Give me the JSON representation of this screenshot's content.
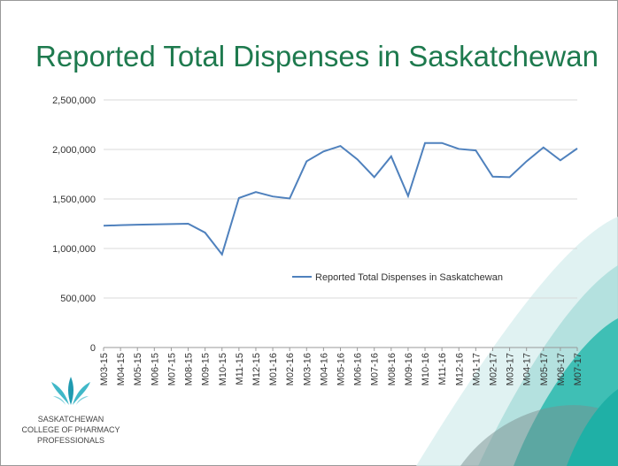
{
  "chart_data": {
    "type": "line",
    "title": "Reported Total Dispenses in Saskatchewan",
    "categories": [
      "M03-15",
      "M04-15",
      "M05-15",
      "M06-15",
      "M07-15",
      "M08-15",
      "M09-15",
      "M10-15",
      "M11-15",
      "M12-15",
      "M01-16",
      "M02-16",
      "M03-16",
      "M04-16",
      "M05-16",
      "M06-16",
      "M07-16",
      "M08-16",
      "M09-16",
      "M10-16",
      "M11-16",
      "M12-16",
      "M01-17",
      "M02-17",
      "M03-17",
      "M04-17",
      "M05-17",
      "M06-17",
      "M07-17"
    ],
    "series": [
      {
        "name": "Reported Total Dispenses in Saskatchewan",
        "color": "#4f81bd",
        "values": [
          1230000,
          1235000,
          1240000,
          1243000,
          1247000,
          1250000,
          1160000,
          940000,
          1510000,
          1570000,
          1525000,
          1505000,
          1880000,
          1980000,
          2035000,
          1900000,
          1720000,
          1930000,
          1530000,
          2065000,
          2065000,
          2005000,
          1990000,
          1725000,
          1720000,
          1880000,
          2020000,
          1890000,
          2010000
        ]
      }
    ],
    "ylim": [
      0,
      2500000
    ],
    "yticks": [
      0,
      {
        "value": 500000,
        "label": "500,000"
      },
      {
        "value": 1000000,
        "label": "1,000,000"
      },
      {
        "value": 1500000,
        "label": "1,500,000"
      },
      {
        "value": 2000000,
        "label": "2,000,000"
      },
      {
        "value": 2500000,
        "label": "2,500,000"
      }
    ],
    "grid": true,
    "legend": "center"
  },
  "logo": {
    "lines": [
      "SASKATCHEWAN",
      "COLLEGE OF PHARMACY",
      "PROFESSIONALS"
    ]
  }
}
